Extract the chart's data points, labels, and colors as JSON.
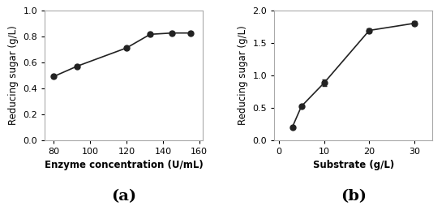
{
  "chart_a": {
    "x": [
      80,
      93,
      120,
      133,
      145,
      155
    ],
    "y": [
      0.49,
      0.57,
      0.71,
      0.815,
      0.825,
      0.825
    ],
    "yerr": [
      0.008,
      0.008,
      0.008,
      0.008,
      0.008,
      0.008
    ],
    "xlabel": "Enzyme concentration (U/mL)",
    "ylabel": "Reducing sugar (g/L)",
    "xlim": [
      75,
      162
    ],
    "ylim": [
      0.0,
      1.0
    ],
    "xticks": [
      80,
      100,
      120,
      140,
      160
    ],
    "yticks": [
      0.0,
      0.2,
      0.4,
      0.6,
      0.8,
      1.0
    ],
    "label": "(a)"
  },
  "chart_b": {
    "x": [
      3,
      5,
      10,
      20,
      30
    ],
    "y": [
      0.2,
      0.52,
      0.88,
      1.69,
      1.8
    ],
    "yerr": [
      0.01,
      0.01,
      0.05,
      0.03,
      0.03
    ],
    "xlabel": "Substrate (g/L)",
    "ylabel": "Reducing sugar (g/L)",
    "xlim": [
      -1,
      34
    ],
    "ylim": [
      0.0,
      2.0
    ],
    "xticks": [
      0,
      10,
      20,
      30
    ],
    "yticks": [
      0.0,
      0.5,
      1.0,
      1.5,
      2.0
    ],
    "label": "(b)"
  },
  "line_color": "#222222",
  "marker": "o",
  "markersize": 5,
  "marker_facecolor": "#222222",
  "linewidth": 1.2,
  "capsize": 2.5,
  "elinewidth": 1.0,
  "xlabel_fontsize": 8.5,
  "ylabel_fontsize": 8.5,
  "tick_fontsize": 8,
  "sublabel_fontsize": 14,
  "spine_color": "#aaaaaa"
}
